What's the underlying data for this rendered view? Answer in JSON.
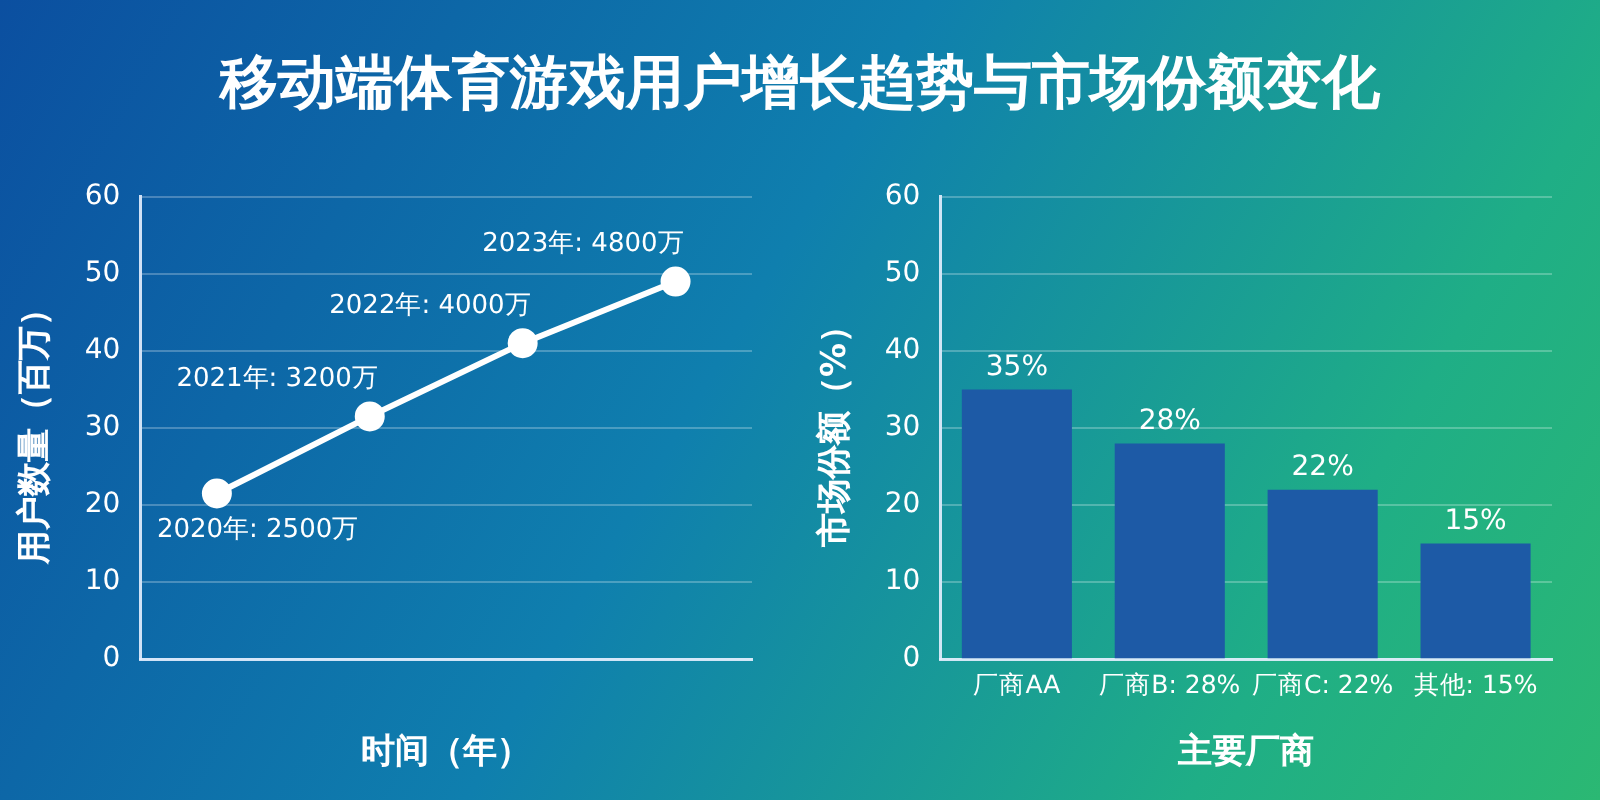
{
  "chart_data": [
    {
      "type": "line",
      "title": "移动端体育游戏用户增长趋势与市场份额变化",
      "xlabel": "时间（年）",
      "ylabel": "用户数量（百万）",
      "categories": [
        null,
        null,
        null,
        null
      ],
      "series": [
        {
          "color": "#ffffff",
          "values": [
            21.5,
            31.5,
            41,
            49
          ]
        }
      ],
      "annotations": [
        "2020年: 2500万",
        "2021年: 3200万",
        "2022年: 4000万",
        "2023年: 4800万"
      ],
      "ylim": [
        0,
        60
      ],
      "yticks": [
        0,
        10,
        20,
        30,
        40,
        50,
        60
      ],
      "grid": "y",
      "legend": false,
      "marker": "circle",
      "line_style": "solid"
    },
    {
      "type": "bar",
      "xlabel": "主要厂商",
      "ylabel": "市场份额（%）",
      "categories": [
        "厂商AA",
        "厂商B: 28%",
        "厂商C: 22%",
        "其他: 15%"
      ],
      "series": [
        {
          "color": "#1d5aa6",
          "values": [
            35,
            28,
            22,
            15
          ],
          "value_labels": [
            "35%",
            "28%",
            "22%",
            "15%"
          ]
        }
      ],
      "ylim": [
        0,
        60
      ],
      "yticks": [
        0,
        10,
        20,
        30,
        40,
        50,
        60
      ],
      "grid": "y",
      "legend": false
    }
  ]
}
